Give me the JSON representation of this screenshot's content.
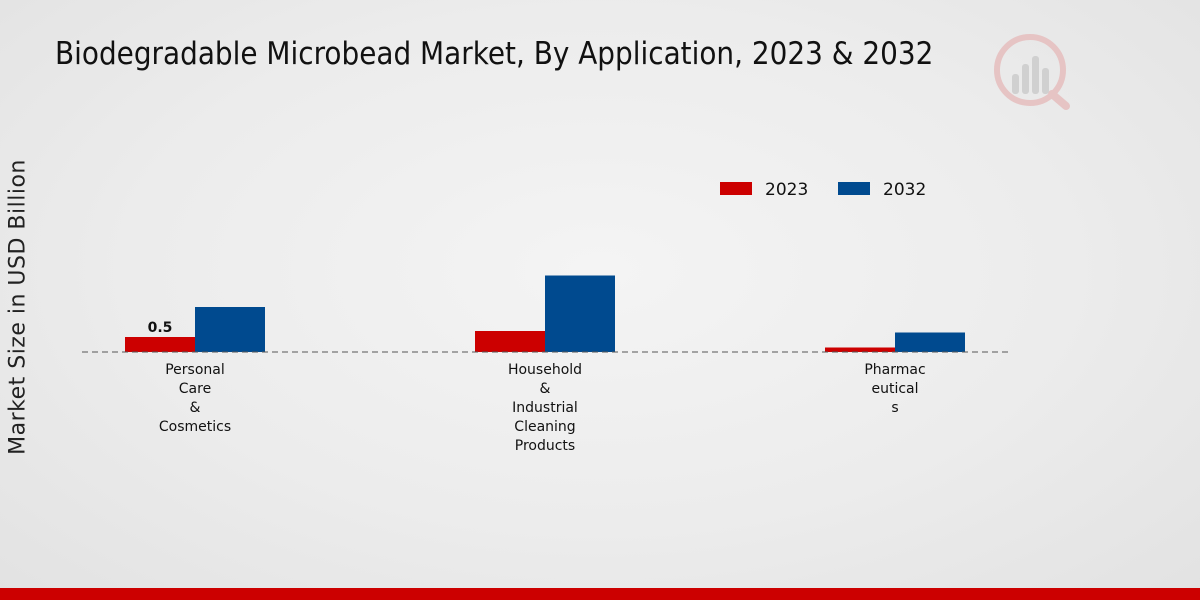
{
  "chart_data": {
    "type": "bar",
    "title": "Biodegradable Microbead Market, By Application, 2023 & 2032",
    "xlabel": "",
    "ylabel": "Market Size in USD Billion",
    "categories": [
      [
        "Personal",
        "Care",
        "&",
        "Cosmetics"
      ],
      [
        "Household",
        "&",
        "Industrial",
        "Cleaning",
        "Products"
      ],
      [
        "Pharmac",
        "eutical",
        "s"
      ]
    ],
    "series": [
      {
        "name": "2023",
        "color": "#cc0000",
        "values": [
          0.5,
          0.7,
          0.15
        ]
      },
      {
        "name": "2032",
        "color": "#004a8f",
        "values": [
          1.5,
          2.55,
          0.65
        ]
      }
    ],
    "data_labels": [
      {
        "series": 0,
        "index": 0,
        "text": "0.5"
      }
    ],
    "ylim": [
      0,
      3.2
    ],
    "grid": false,
    "legend": "top-right"
  }
}
